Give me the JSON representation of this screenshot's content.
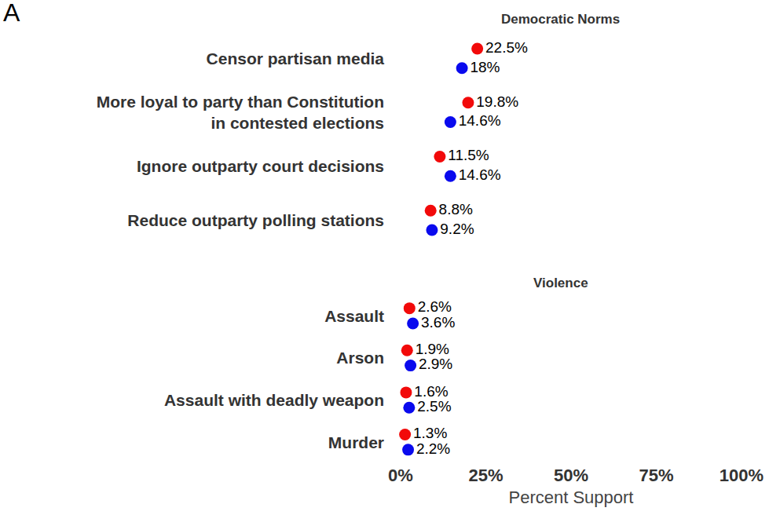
{
  "panel_label": "A",
  "chart_data": [
    {
      "type": "scatter",
      "title": "Democratic Norms",
      "orientation": "horizontal",
      "categories": [
        "Censor partisan media",
        "More loyal to party than Constitution\nin contested elections",
        "Ignore outparty court decisions",
        "Reduce outparty polling stations"
      ],
      "series": [
        {
          "color": "#f20a0a",
          "values": [
            22.5,
            19.8,
            11.5,
            8.8
          ],
          "value_labels": [
            "22.5%",
            "19.8%",
            "11.5%",
            "8.8%"
          ]
        },
        {
          "color": "#0a0aee",
          "values": [
            18,
            14.6,
            14.6,
            9.2
          ],
          "value_labels": [
            "18%",
            "14.6%",
            "14.6%",
            "9.2%"
          ]
        }
      ],
      "xlim": [
        0,
        100
      ],
      "xticks": [
        {
          "value": 0,
          "label": "0%"
        },
        {
          "value": 25,
          "label": "25%"
        },
        {
          "value": 50,
          "label": "50%"
        },
        {
          "value": 75,
          "label": "75%"
        },
        {
          "value": 100,
          "label": "100%"
        }
      ],
      "grid": false,
      "data_labels": true,
      "tick_labels": "y",
      "marker": "circle"
    },
    {
      "type": "scatter",
      "title": "Violence",
      "orientation": "horizontal",
      "categories": [
        "Assault",
        "Arson",
        "Assault with deadly weapon",
        "Murder"
      ],
      "series": [
        {
          "color": "#f20a0a",
          "values": [
            2.6,
            1.9,
            1.6,
            1.3
          ],
          "value_labels": [
            "2.6%",
            "1.9%",
            "1.6%",
            "1.3%"
          ]
        },
        {
          "color": "#0a0aee",
          "values": [
            3.6,
            2.9,
            2.5,
            2.2
          ],
          "value_labels": [
            "3.6%",
            "2.9%",
            "2.5%",
            "2.2%"
          ]
        }
      ],
      "xlim": [
        0,
        100
      ],
      "xticks": [
        {
          "value": 0,
          "label": "0%"
        },
        {
          "value": 25,
          "label": "25%"
        },
        {
          "value": 50,
          "label": "50%"
        },
        {
          "value": 75,
          "label": "75%"
        },
        {
          "value": 100,
          "label": "100%"
        }
      ],
      "xlabel": "Percent Support",
      "grid": false,
      "data_labels": true,
      "marker": "circle"
    }
  ]
}
